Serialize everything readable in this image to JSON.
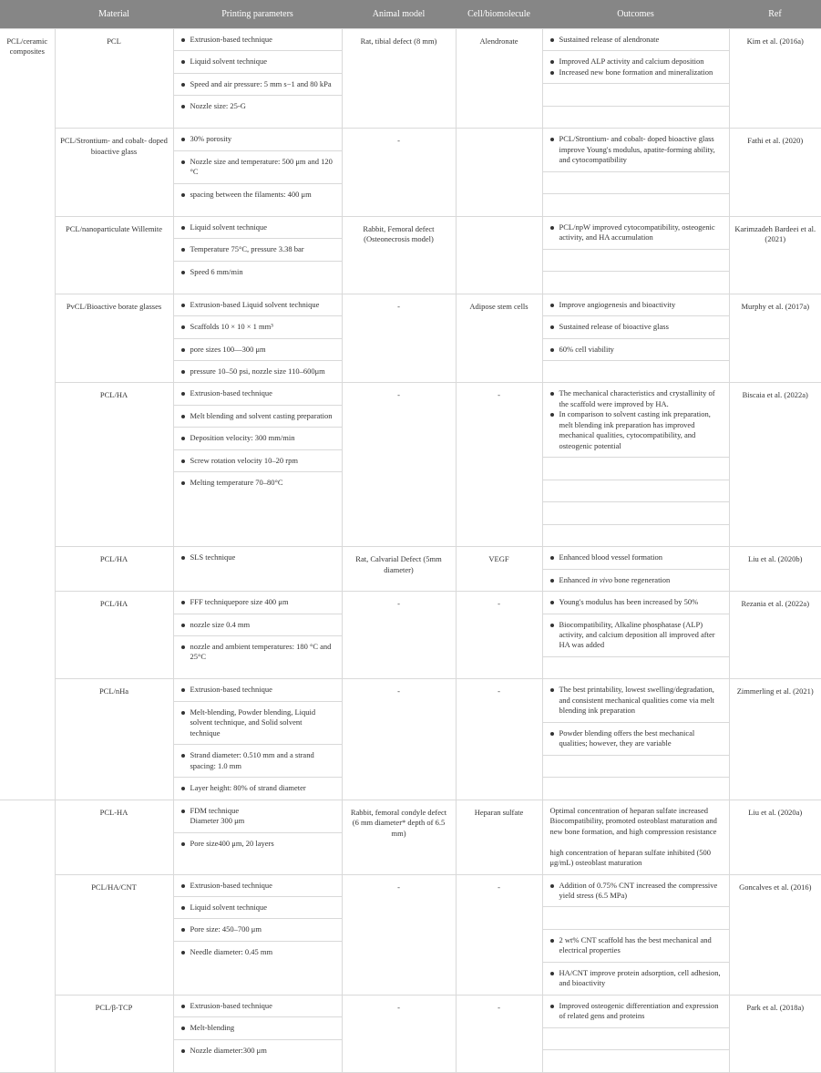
{
  "headers": [
    "",
    "Material",
    "Printing parameters",
    "Animal model",
    "Cell/biomolecule",
    "Outcomes",
    "Ref"
  ],
  "category": "PCL/ceramic composites",
  "rows": [
    {
      "material": "PCL",
      "params": [
        [
          "Extrusion-based technique"
        ],
        [
          "Liquid solvent technique"
        ],
        [
          "Speed and air pressure: 5 mm s−1 and 80 kPa"
        ],
        [
          "Nozzle size: 25-G"
        ]
      ],
      "model": "Rat, tibial defect (8 mm)",
      "cell": "Alendronate",
      "outcomes": [
        [
          "Sustained release of alendronate"
        ],
        [
          "Improved ALP activity and calcium deposition",
          "Increased new bone formation and mineralization"
        ],
        [],
        []
      ],
      "ref": "Kim et al. (2016a)"
    },
    {
      "material": "PCL/Strontium- and cobalt- doped bioactive glass",
      "params": [
        [
          "30% porosity"
        ],
        [
          "Nozzle size and temperature: 500 μm and 120 °C"
        ],
        [
          "spacing between the filaments: 400 μm"
        ]
      ],
      "model": "-",
      "cell": "",
      "outcomes": [
        [
          "PCL/Strontium- and cobalt- doped bioactive glass improve Young's modulus, apatite-forming ability, and cytocompatibility"
        ],
        [],
        []
      ],
      "ref": "Fathi et al. (2020)"
    },
    {
      "material": "PCL/nanoparticulate Willemite",
      "params": [
        [
          "Liquid solvent technique"
        ],
        [
          "Temperature 75°C, pressure 3.38 bar"
        ],
        [
          "Speed 6 mm/min"
        ]
      ],
      "model": "Rabbit, Femoral defect (Osteonecrosis model)",
      "cell": "",
      "outcomes": [
        [
          "PCL/npW improved cytocompatibility, osteogenic activity, and HA accumulation"
        ],
        [],
        []
      ],
      "ref": "Karimzadeh Bardeei et al. (2021)"
    },
    {
      "material": "PvCL/Bioactive borate glasses",
      "params": [
        [
          "Extrusion-based Liquid solvent technique"
        ],
        [
          "Scaffolds 10 × 10 × 1 mm³"
        ],
        [
          "pore sizes 100—300 μm"
        ],
        [
          "pressure 10–50 psi, nozzle size 110–600μm"
        ]
      ],
      "model": "-",
      "cell": "Adipose stem cells",
      "outcomes": [
        [
          "Improve angiogenesis and bioactivity"
        ],
        [
          "Sustained release of bioactive glass"
        ],
        [
          "60% cell viability"
        ],
        []
      ],
      "ref": "Murphy et al. (2017a)"
    },
    {
      "material": "PCL/HA",
      "params": [
        [
          "Extrusion-based technique"
        ],
        [
          "Melt blending and solvent casting preparation"
        ],
        [
          "Deposition velocity: 300 mm/min"
        ],
        [
          "Screw rotation velocity 10–20 rpm"
        ],
        [
          "Melting temperature 70–80°C"
        ]
      ],
      "model": "-",
      "cell": "-",
      "outcomes": [
        [
          "The mechanical characteristics and crystallinity of the scaffold were improved by HA.",
          "In comparison to solvent casting ink preparation, melt blending ink preparation has improved mechanical qualities, cytocompatibility, and osteogenic potential"
        ],
        [],
        [],
        [],
        []
      ],
      "ref": "Biscaia et al. (2022a)"
    },
    {
      "material": "PCL/HA",
      "params": [
        [
          "SLS technique"
        ]
      ],
      "model": "Rat, Calvarial Defect (5mm diameter)",
      "cell": "VEGF",
      "outcomes": [
        [
          "Enhanced blood vessel formation"
        ],
        [
          "Enhanced <i class=\"iz\">in vivo</i> bone regeneration"
        ]
      ],
      "ref": "Liu et al. (2020b)",
      "outcome_two_in_one": true
    },
    {
      "material": "PCL/HA",
      "params": [
        [
          "FFF techniquepore size 400 μm"
        ],
        [
          "nozzle size 0.4 mm"
        ],
        [
          "nozzle and ambient temperatures: 180 °C and 25°C"
        ]
      ],
      "model": "-",
      "cell": "-",
      "outcomes": [
        [
          "Young's modulus has been increased by 50%"
        ],
        [
          "Biocompatibility, Alkaline phosphatase (ALP) activity, and calcium deposition all improved after HA was added"
        ],
        []
      ],
      "ref": "Rezania et al. (2022a)"
    },
    {
      "material": "PCL/nHa",
      "params": [
        [
          "Extrusion-based technique"
        ],
        [
          "Melt-blending, Powder blending, Liquid solvent technique, and Solid solvent technique"
        ],
        [
          "Strand diameter: 0.510 mm and a strand spacing: 1.0 mm"
        ],
        [
          "Layer height: 80% of strand diameter"
        ]
      ],
      "model": "-",
      "cell": "-",
      "outcomes": [
        [
          "The best printability, lowest swelling/degradation, and consistent mechanical qualities come via melt blending ink preparation"
        ],
        [
          "Powder blending offers the best mechanical qualities; however, they are variable"
        ],
        [],
        []
      ],
      "ref": "Zimmerling et al. (2021)"
    },
    {
      "material": "PCL-HA",
      "new_cat_block": true,
      "params_plain": [
        "FDM technique<br>Diameter 300 μm",
        "Pore size400 μm, 20 layers"
      ],
      "model": "Rabbit, femoral condyle defect (6 mm diameter* depth of 6.5 mm)",
      "cell": "Heparan sulfate",
      "outcomes_plain": "Optimal concentration of heparan sulfate increased Biocompatibility, promoted osteoblast maturation and new bone formation, and high compression resistance<br><br>high concentration of heparan sulfate inhibited (500 μg/mL) osteoblast maturation",
      "ref": "Liu et al. (2020a)"
    },
    {
      "material": "PCL/HA/CNT",
      "params": [
        [
          "Extrusion-based technique"
        ],
        [
          "Liquid solvent technique"
        ],
        [
          "Pore size: 450–700 μm"
        ],
        [
          "Needle diameter: 0.45 mm"
        ]
      ],
      "model": "-",
      "cell": "-",
      "outcomes": [
        [
          "Addition of 0.75% CNT increased the compressive yield stress (6.5 MPa)"
        ],
        [],
        [
          "2 wt% CNT scaffold has the best mechanical and electrical properties"
        ],
        [
          "HA/CNT improve protein adsorption, cell adhesion, and bioactivity"
        ]
      ],
      "ref": "Goncalves et al. (2016)"
    },
    {
      "material": "PCL/β-TCP",
      "params": [
        [
          "Extrusion-based technique"
        ],
        [
          "Melt-blending"
        ],
        [
          "Nozzle diameter:300 μm"
        ]
      ],
      "model": "-",
      "cell": "-",
      "outcomes": [
        [
          "Improved osteogenic differentiation and expression of related gens and proteins"
        ],
        [],
        []
      ],
      "ref": "Park et al. (2018a)"
    }
  ]
}
